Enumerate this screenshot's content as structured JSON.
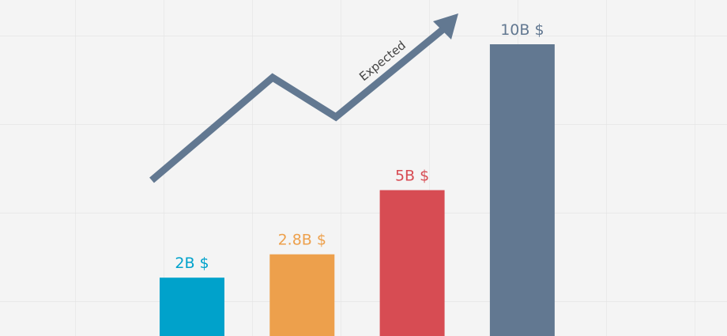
{
  "chart_data": {
    "type": "bar",
    "values": [
      2,
      2.8,
      5,
      10
    ],
    "value_labels": [
      "2B $",
      "2.8B $",
      "5B $",
      "10B $"
    ],
    "colors": [
      "#00a2cb",
      "#eda04c",
      "#d74c53",
      "#627891"
    ],
    "annotation": "Expected",
    "grid": true
  }
}
